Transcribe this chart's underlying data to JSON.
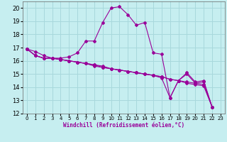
{
  "xlabel": "Windchill (Refroidissement éolien,°C)",
  "bg_color": "#c6eef0",
  "grid_color": "#a8d8dc",
  "line_color": "#990099",
  "xlim": [
    -0.5,
    23.5
  ],
  "ylim": [
    12,
    20.5
  ],
  "yticks": [
    12,
    13,
    14,
    15,
    16,
    17,
    18,
    19,
    20
  ],
  "xticks": [
    0,
    1,
    2,
    3,
    4,
    5,
    6,
    7,
    8,
    9,
    10,
    11,
    12,
    13,
    14,
    15,
    16,
    17,
    18,
    19,
    20,
    21,
    22,
    23
  ],
  "series": [
    [
      16.9,
      16.7,
      16.4,
      16.2,
      16.2,
      16.3,
      16.6,
      17.5,
      17.5,
      18.9,
      20.0,
      20.1,
      19.5,
      18.7,
      18.9,
      16.6,
      16.5,
      13.2,
      14.5,
      15.1,
      14.4,
      14.5,
      12.5
    ],
    [
      16.9,
      16.4,
      16.2,
      16.2,
      16.1,
      16.0,
      15.9,
      15.8,
      15.7,
      15.5,
      15.4,
      15.3,
      15.2,
      15.1,
      15.0,
      14.9,
      14.8,
      14.6,
      14.5,
      14.4,
      14.3,
      14.2,
      12.5
    ],
    [
      16.9,
      16.4,
      16.2,
      16.2,
      16.1,
      16.0,
      15.9,
      15.8,
      15.7,
      15.6,
      15.4,
      15.3,
      15.2,
      15.1,
      15.0,
      14.9,
      14.8,
      14.6,
      14.5,
      14.3,
      14.2,
      14.1,
      12.5
    ],
    [
      16.9,
      16.4,
      16.2,
      16.2,
      16.1,
      16.0,
      15.9,
      15.8,
      15.6,
      15.5,
      15.4,
      15.3,
      15.2,
      15.1,
      15.0,
      14.9,
      14.7,
      13.2,
      14.5,
      15.0,
      14.3,
      14.4,
      12.5
    ]
  ],
  "xlabel_fontsize": 5.5,
  "ytick_fontsize": 6.0,
  "xtick_fontsize": 5.0
}
